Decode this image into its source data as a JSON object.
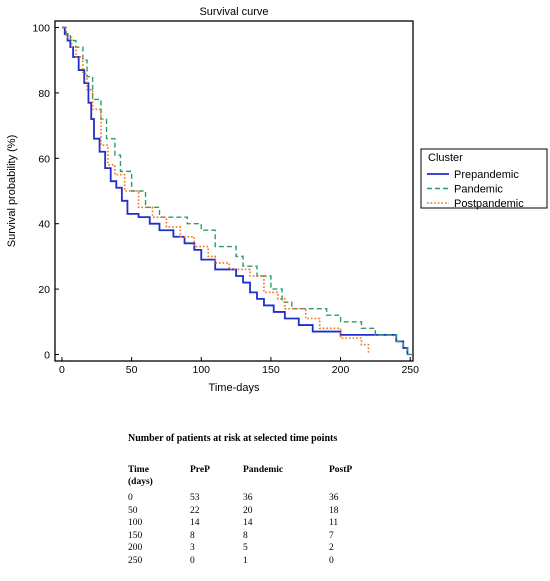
{
  "chart_data": {
    "type": "line",
    "title": "Survival curve",
    "xlabel": "Time-days",
    "ylabel": "Survival probability (%)",
    "xlim": [
      -5,
      252
    ],
    "ylim": [
      -2,
      102
    ],
    "xticks": [
      0,
      50,
      100,
      150,
      200,
      250
    ],
    "yticks": [
      0,
      20,
      40,
      60,
      80,
      100
    ],
    "legend": {
      "title": "Cluster",
      "position": "right"
    },
    "series": [
      {
        "name": "Prepandemic",
        "color": "#1f2ecc",
        "style": "solid",
        "x": [
          0,
          2,
          4,
          6,
          8,
          12,
          16,
          19,
          21,
          23,
          27,
          31,
          35,
          39,
          43,
          47,
          55,
          63,
          70,
          80,
          88,
          95,
          100,
          110,
          125,
          130,
          135,
          140,
          145,
          152,
          160,
          170,
          180,
          200,
          240,
          245,
          248
        ],
        "y": [
          100,
          98,
          96,
          94,
          91,
          87,
          83,
          77,
          72,
          66,
          62,
          57,
          53,
          51,
          47,
          43,
          42,
          40,
          38,
          36,
          34,
          32,
          29,
          26,
          24,
          22,
          19,
          17,
          15,
          13,
          11,
          9,
          7,
          6,
          4,
          2,
          0
        ]
      },
      {
        "name": "Pandemic",
        "color": "#2a9d6c",
        "style": "dashed",
        "x": [
          0,
          3,
          6,
          10,
          15,
          18,
          22,
          28,
          32,
          38,
          42,
          50,
          60,
          70,
          90,
          100,
          110,
          125,
          130,
          140,
          150,
          158,
          165,
          190,
          200,
          215,
          225,
          240,
          245,
          248
        ],
        "y": [
          100,
          98,
          96,
          94,
          90,
          85,
          78,
          72,
          66,
          61,
          56,
          50,
          45,
          42,
          40,
          38,
          33,
          30,
          27,
          24,
          20,
          16,
          14,
          12,
          10,
          8,
          6,
          4,
          2,
          0
        ],
        "end": 252
      },
      {
        "name": "Postpandemic",
        "color": "#f07020",
        "style": "dotted",
        "x": [
          0,
          3,
          7,
          10,
          15,
          18,
          22,
          28,
          33,
          38,
          45,
          55,
          65,
          75,
          85,
          95,
          105,
          110,
          120,
          135,
          145,
          155,
          160,
          175,
          185,
          200,
          215,
          220
        ],
        "y": [
          100,
          97,
          94,
          91,
          86,
          81,
          75,
          64,
          58,
          55,
          50,
          45,
          42,
          39,
          36,
          33,
          30,
          28,
          26,
          24,
          19,
          17,
          14,
          11,
          8,
          5,
          3,
          0
        ]
      }
    ]
  },
  "risk_table": {
    "title": "Number of patients at risk at selected time points",
    "headers": {
      "time": "Time",
      "time_unit": "(days)",
      "prep": "PreP",
      "pandemic": "Pandemic",
      "postp": "PostP"
    },
    "rows": [
      {
        "time": "0",
        "prep": "53",
        "pandemic": "36",
        "postp": "36"
      },
      {
        "time": "50",
        "prep": "22",
        "pandemic": "20",
        "postp": "18"
      },
      {
        "time": "100",
        "prep": "14",
        "pandemic": "14",
        "postp": "11"
      },
      {
        "time": "150",
        "prep": "8",
        "pandemic": "8",
        "postp": "7"
      },
      {
        "time": "200",
        "prep": "3",
        "pandemic": "5",
        "postp": "2"
      },
      {
        "time": "250",
        "prep": "0",
        "pandemic": "1",
        "postp": "0"
      }
    ]
  }
}
